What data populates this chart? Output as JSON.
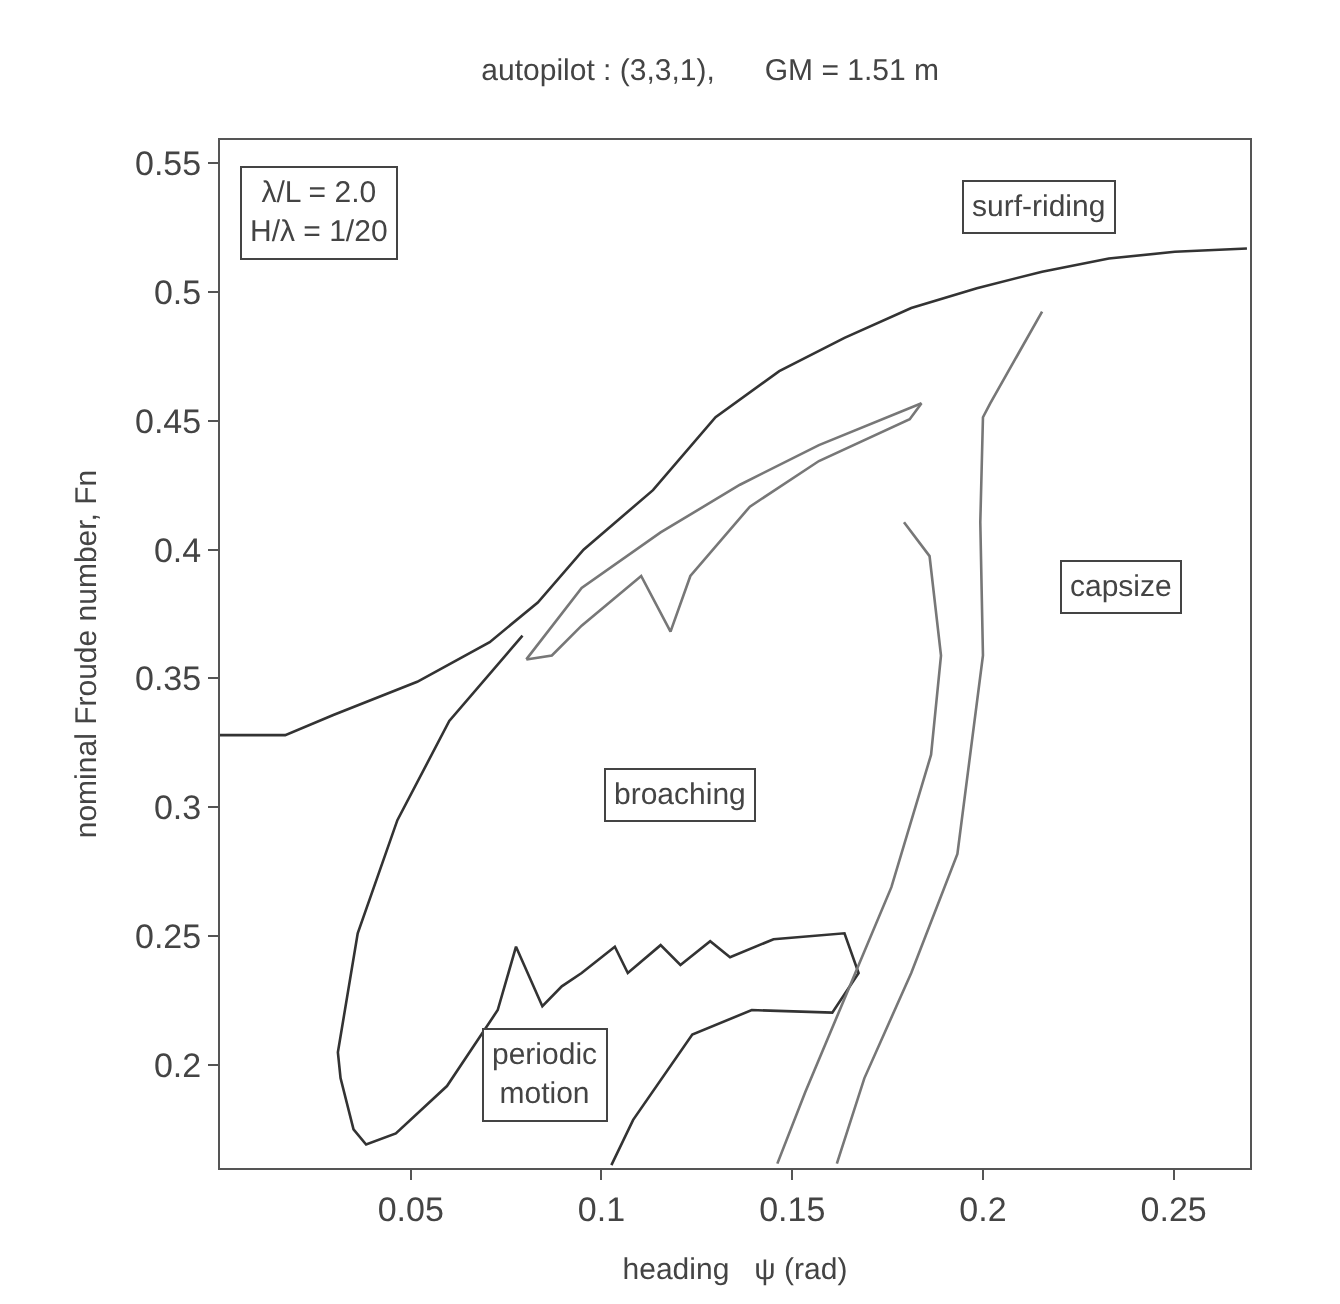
{
  "chart_data": {
    "type": "line",
    "title": "autopilot : (3,3,1),      GM = 1.51 m",
    "xlabel": "heading   ψ (rad)",
    "ylabel": "nominal Froude number, Fn",
    "xlim": [
      0,
      0.27
    ],
    "ylim": [
      0.16,
      0.559
    ],
    "xticks": [
      0.05,
      0.1,
      0.15,
      0.2,
      0.25
    ],
    "yticks": [
      0.2,
      0.25,
      0.3,
      0.35,
      0.4,
      0.45,
      0.5,
      0.55
    ],
    "marker": "none",
    "line_style": "solid",
    "series": [
      {
        "color": "#333333",
        "x": [
          0,
          0.0171,
          0.0297,
          0.0517,
          0.0707,
          0.0833,
          0.0953,
          0.1135,
          0.1299,
          0.1466,
          0.1637,
          0.1812,
          0.1984,
          0.2155,
          0.233,
          0.2503,
          0.2692
        ],
        "values": [
          0.328,
          0.328,
          0.3358,
          0.3487,
          0.3641,
          0.3795,
          0.4,
          0.4231,
          0.4514,
          0.4693,
          0.4822,
          0.4938,
          0.5015,
          0.5079,
          0.513,
          0.5156,
          0.5169
        ]
      },
      {
        "color": "#333333",
        "x": [
          0.0793,
          0.0601,
          0.0465,
          0.0361,
          0.0309,
          0.0316,
          0.035,
          0.0383,
          0.0461,
          0.0595,
          0.0728,
          0.0776,
          0.0845,
          0.0896,
          0.0948,
          0.1035,
          0.1069,
          0.1155,
          0.1207,
          0.1285,
          0.1337,
          0.1451,
          0.1637,
          0.1674,
          0.1605,
          0.1394,
          0.1238,
          0.1083,
          0.1026
        ],
        "values": [
          0.3666,
          0.3335,
          0.295,
          0.2511,
          0.2049,
          0.1949,
          0.175,
          0.1691,
          0.1734,
          0.1918,
          0.2213,
          0.2459,
          0.2228,
          0.2305,
          0.2357,
          0.2459,
          0.2357,
          0.2465,
          0.2388,
          0.248,
          0.2418,
          0.2488,
          0.2511,
          0.2357,
          0.2203,
          0.2213,
          0.2118,
          0.1787,
          0.1611
        ]
      },
      {
        "color": "#777777",
        "x": [
          0.2155,
          0.2019,
          0.2,
          0.1993,
          0.2,
          0.1933,
          0.1812,
          0.1689,
          0.1617
        ],
        "values": [
          0.4924,
          0.4568,
          0.4514,
          0.4106,
          0.3589,
          0.2819,
          0.2357,
          0.1948,
          0.1617
        ]
      },
      {
        "color": "#777777",
        "x": [
          0.1793,
          0.186,
          0.189,
          0.1864,
          0.176,
          0.1637,
          0.1534,
          0.1461
        ],
        "values": [
          0.4106,
          0.3975,
          0.3589,
          0.3204,
          0.269,
          0.2257,
          0.1894,
          0.1617
        ]
      },
      {
        "color": "#777777",
        "x": [
          0.0803,
          0.0948,
          0.1155,
          0.1363,
          0.157,
          0.1839
        ],
        "values": [
          0.3574,
          0.3851,
          0.4067,
          0.4252,
          0.4406,
          0.4568
        ]
      },
      {
        "color": "#777777",
        "x": [
          0.0803,
          0.087,
          0.0948,
          0.1104,
          0.1181,
          0.1233,
          0.1389,
          0.157,
          0.1808,
          0.1839
        ],
        "values": [
          0.3574,
          0.3589,
          0.3705,
          0.3898,
          0.3682,
          0.3898,
          0.4167,
          0.4344,
          0.4506,
          0.4568
        ]
      }
    ],
    "annotations": [
      "surf-riding",
      "capsize",
      "broaching",
      "periodic\nmotion",
      "λ/L = 2.0\nH/λ = 1/20"
    ]
  }
}
